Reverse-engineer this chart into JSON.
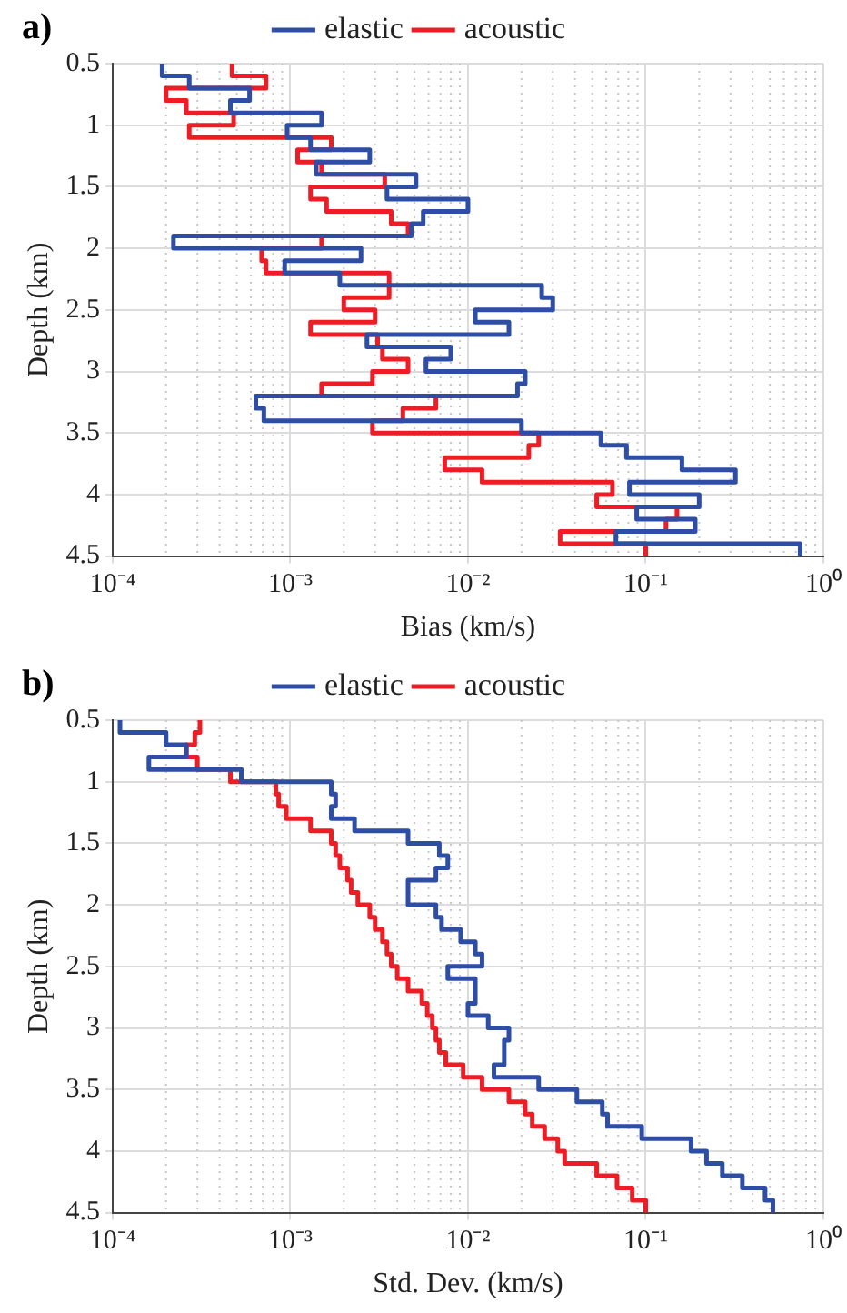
{
  "chart_data": [
    {
      "type": "step",
      "orientation": "horizontal",
      "annotations": [
        "a)"
      ],
      "xlabel": "Bias (km/s)",
      "ylabel": "Depth (km)",
      "legend": "top",
      "grid": true,
      "log": "x",
      "x": [
        0.5,
        0.6,
        0.7,
        0.8,
        0.9,
        1.0,
        1.1,
        1.2,
        1.3,
        1.4,
        1.5,
        1.6,
        1.7,
        1.8,
        1.9,
        2.0,
        2.1,
        2.2,
        2.3,
        2.4,
        2.5,
        2.6,
        2.7,
        2.8,
        2.9,
        3.0,
        3.1,
        3.2,
        3.3,
        3.4,
        3.5,
        3.6,
        3.7,
        3.8,
        3.9,
        4.0,
        4.1,
        4.2,
        4.3,
        4.4,
        4.5
      ],
      "xlim": [
        0.0001,
        1
      ],
      "xticks": [
        {
          "value": 0.0001,
          "label": "10⁻⁴"
        },
        {
          "value": 0.001,
          "label": "10⁻³"
        },
        {
          "value": 0.01,
          "label": "10⁻²"
        },
        {
          "value": 0.1,
          "label": "10⁻¹"
        },
        {
          "value": 1,
          "label": "10⁰"
        }
      ],
      "ylim": [
        4.5,
        0.5
      ],
      "yticks": [
        0.5,
        1,
        1.5,
        2,
        2.5,
        3,
        3.5,
        4,
        4.5
      ],
      "series": [
        {
          "name": "elastic",
          "color": "#2e4ea6",
          "values": [
            0.00019,
            0.00027,
            0.00059,
            0.00046,
            0.0015,
            0.00096,
            0.0013,
            0.0028,
            0.0014,
            0.0051,
            0.0035,
            0.01,
            0.0056,
            0.0048,
            0.00022,
            0.0025,
            0.00093,
            0.0019,
            0.026,
            0.03,
            0.011,
            0.017,
            0.0027,
            0.008,
            0.0058,
            0.021,
            0.019,
            0.00064,
            0.00071,
            0.02,
            0.056,
            0.078,
            0.16,
            0.32,
            0.081,
            0.2,
            0.089,
            0.19,
            0.068,
            0.74,
            0.74
          ]
        },
        {
          "name": "acoustic",
          "color": "#ee1c25",
          "values": [
            0.00047,
            0.00073,
            0.0002,
            0.00026,
            0.00048,
            0.00027,
            0.0017,
            0.0011,
            0.0015,
            0.0034,
            0.0013,
            0.0016,
            0.0037,
            0.0046,
            0.0015,
            0.00069,
            0.00073,
            0.0036,
            0.0036,
            0.002,
            0.003,
            0.0013,
            0.0031,
            0.0033,
            0.0046,
            0.0029,
            0.0015,
            0.0066,
            0.0043,
            0.0029,
            0.025,
            0.022,
            0.0074,
            0.012,
            0.065,
            0.053,
            0.15,
            0.13,
            0.033,
            0.1,
            0.1
          ]
        }
      ]
    },
    {
      "type": "step",
      "orientation": "horizontal",
      "annotations": [
        "b)"
      ],
      "xlabel": "Std. Dev. (km/s)",
      "ylabel": "Depth (km)",
      "legend": "top",
      "grid": true,
      "log": "x",
      "x": [
        0.5,
        0.6,
        0.7,
        0.8,
        0.9,
        1.0,
        1.1,
        1.2,
        1.3,
        1.4,
        1.5,
        1.6,
        1.7,
        1.8,
        1.9,
        2.0,
        2.1,
        2.2,
        2.3,
        2.4,
        2.5,
        2.6,
        2.7,
        2.8,
        2.9,
        3.0,
        3.1,
        3.2,
        3.3,
        3.4,
        3.5,
        3.6,
        3.7,
        3.8,
        3.9,
        4.0,
        4.1,
        4.2,
        4.3,
        4.4,
        4.5
      ],
      "xlim": [
        0.0001,
        1
      ],
      "xticks": [
        {
          "value": 0.0001,
          "label": "10⁻⁴"
        },
        {
          "value": 0.001,
          "label": "10⁻³"
        },
        {
          "value": 0.01,
          "label": "10⁻²"
        },
        {
          "value": 0.1,
          "label": "10⁻¹"
        },
        {
          "value": 1,
          "label": "10⁰"
        }
      ],
      "ylim": [
        4.5,
        0.5
      ],
      "yticks": [
        0.5,
        1,
        1.5,
        2,
        2.5,
        3,
        3.5,
        4,
        4.5
      ],
      "series": [
        {
          "name": "elastic",
          "color": "#2e4ea6",
          "values": [
            0.00011,
            0.0002,
            0.00026,
            0.00016,
            0.00053,
            0.0017,
            0.0018,
            0.0017,
            0.0023,
            0.0046,
            0.0069,
            0.0077,
            0.0066,
            0.0046,
            0.0046,
            0.0066,
            0.0071,
            0.0091,
            0.011,
            0.012,
            0.0077,
            0.011,
            0.011,
            0.01,
            0.013,
            0.017,
            0.016,
            0.016,
            0.014,
            0.025,
            0.041,
            0.057,
            0.061,
            0.095,
            0.18,
            0.22,
            0.27,
            0.35,
            0.47,
            0.52,
            0.52
          ]
        },
        {
          "name": "acoustic",
          "color": "#ee1c25",
          "values": [
            0.00031,
            0.00029,
            0.00026,
            0.0003,
            0.00046,
            0.00083,
            0.00086,
            0.00095,
            0.0013,
            0.0017,
            0.0018,
            0.0019,
            0.0021,
            0.0022,
            0.0024,
            0.0028,
            0.003,
            0.0033,
            0.0035,
            0.0037,
            0.004,
            0.0046,
            0.0055,
            0.0059,
            0.0063,
            0.0066,
            0.0069,
            0.0075,
            0.0094,
            0.012,
            0.017,
            0.021,
            0.023,
            0.027,
            0.032,
            0.035,
            0.053,
            0.069,
            0.084,
            0.1,
            0.1
          ]
        }
      ]
    }
  ]
}
